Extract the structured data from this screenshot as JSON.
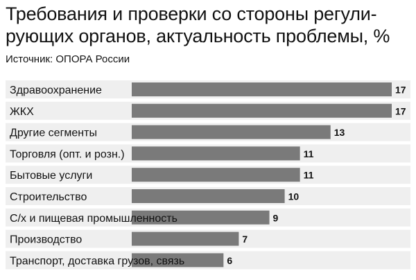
{
  "title": "Требования и проверки со стороны регулирующих органов, актуальность проблемы, %",
  "title_lines": [
    "Требования и проверки со стороны регули-",
    "рующих органов, актуальность проблемы, %"
  ],
  "source": "Источник: ОПОРА России",
  "chart_data": {
    "type": "bar",
    "orientation": "horizontal",
    "title": "Требования и проверки со стороны регулирующих органов, актуальность проблемы, %",
    "categories": [
      "Здравоохранение",
      "ЖКХ",
      "Другие сегменты",
      "Торговля (опт. и розн.)",
      "Бытовые услуги",
      "Строительство",
      "С/х и пищевая промышленность",
      "Производство",
      "Транспорт, доставка грузов, связь"
    ],
    "values": [
      17,
      17,
      13,
      11,
      11,
      10,
      9,
      7,
      6
    ],
    "xlim": [
      0,
      17
    ],
    "grid": false,
    "legend": "none",
    "bar_color": "#7a7a7a",
    "row_color": "#efefef"
  }
}
